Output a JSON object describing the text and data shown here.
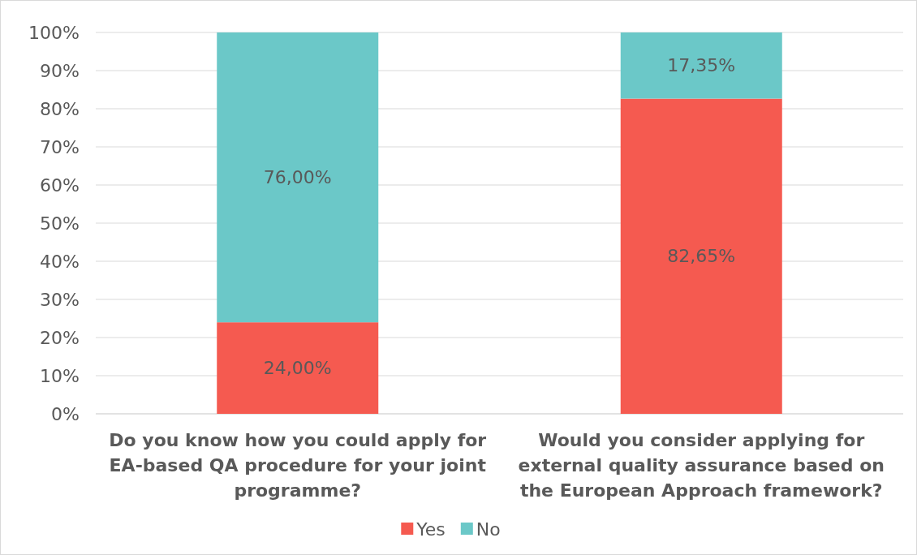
{
  "chart_data": {
    "type": "bar",
    "stacked": true,
    "categories": [
      "Do you know how you could apply for EA-based QA procedure for your joint programme?",
      "Would you consider applying for external quality assurance based on the European Approach framework?"
    ],
    "series": [
      {
        "name": "Yes",
        "color": "#f55a50",
        "values": [
          24,
          82.65
        ],
        "value_labels": [
          "24,00%",
          "82,65%"
        ]
      },
      {
        "name": "No",
        "color": "#6bc8c8",
        "values": [
          76,
          17.35
        ],
        "value_labels": [
          "76,00%",
          "17,35%"
        ]
      }
    ],
    "ylim": [
      0,
      100
    ],
    "yticks": [
      {
        "value": 0,
        "label": "0%"
      },
      {
        "value": 10,
        "label": "10%"
      },
      {
        "value": 20,
        "label": "20%"
      },
      {
        "value": 30,
        "label": "30%"
      },
      {
        "value": 40,
        "label": "40%"
      },
      {
        "value": 50,
        "label": "50%"
      },
      {
        "value": 60,
        "label": "60%"
      },
      {
        "value": 70,
        "label": "70%"
      },
      {
        "value": 80,
        "label": "80%"
      },
      {
        "value": 90,
        "label": "90%"
      },
      {
        "value": 100,
        "label": "100%"
      }
    ],
    "grid": "y",
    "legend": "bottom"
  }
}
